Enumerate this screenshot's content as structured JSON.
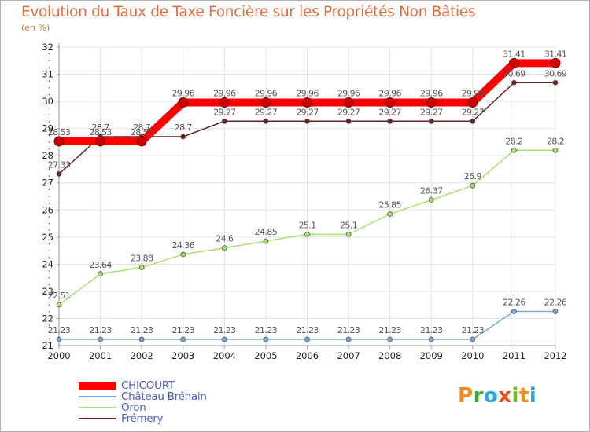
{
  "title": "Evolution du Taux de Taxe Foncière sur les Propriétés Non Bâties",
  "subtitle": "(en %)",
  "brand": {
    "letters": [
      "P",
      "r",
      "o",
      "x",
      "i",
      "t",
      "i"
    ],
    "colors": [
      "#f28c1e",
      "#3fa535",
      "#29a9e0",
      "#e94e1b",
      "#7ab929",
      "#f28c1e",
      "#29a9e0"
    ]
  },
  "chart_data": {
    "type": "line",
    "title": "Evolution du Taux de Taxe Foncière sur les Propriétés Non Bâties",
    "ylabel": "(en %)",
    "xlabel": "",
    "ylim": [
      21,
      32
    ],
    "yticks": [
      21,
      22,
      23,
      24,
      25,
      26,
      27,
      28,
      29,
      30,
      31,
      32
    ],
    "categories": [
      "2000",
      "2001",
      "2002",
      "2003",
      "2004",
      "2005",
      "2006",
      "2007",
      "2008",
      "2009",
      "2010",
      "2011",
      "2012"
    ],
    "series": [
      {
        "name": "Frémery",
        "color": "#6b2020",
        "values": [
          27.33,
          28.7,
          28.7,
          28.7,
          29.27,
          29.27,
          29.27,
          29.27,
          29.27,
          29.27,
          29.27,
          30.69,
          30.69
        ],
        "labels": [
          "27.33",
          "28.7",
          "28.7",
          "28.7",
          "29.27",
          "29.27",
          "29.27",
          "29.27",
          "29.27",
          "29.27",
          "29.27",
          "30.69",
          "30.69"
        ]
      },
      {
        "name": "Oron",
        "color": "#a8e070",
        "values": [
          22.51,
          23.64,
          23.88,
          24.36,
          24.6,
          24.85,
          25.1,
          25.1,
          25.85,
          26.37,
          26.9,
          28.2,
          28.2
        ],
        "labels": [
          "22.51",
          "23.64",
          "23.88",
          "24.36",
          "24.6",
          "24.85",
          "25.1",
          "25.1",
          "25.85",
          "26.37",
          "26.9",
          "28.2",
          "28.2"
        ]
      },
      {
        "name": "Château-Bréhain",
        "color": "#7aaad8",
        "values": [
          21.23,
          21.23,
          21.23,
          21.23,
          21.23,
          21.23,
          21.23,
          21.23,
          21.23,
          21.23,
          21.23,
          22.26,
          22.26
        ],
        "labels": [
          "21.23",
          "21.23",
          "21.23",
          "21.23",
          "21.23",
          "21.23",
          "21.23",
          "21.23",
          "21.23",
          "21.23",
          "21.23",
          "22.26",
          "22.26"
        ]
      },
      {
        "name": "CHICOURT",
        "color": "#ff0000",
        "values": [
          28.53,
          28.53,
          28.53,
          29.96,
          29.96,
          29.96,
          29.96,
          29.96,
          29.96,
          29.96,
          29.96,
          31.41,
          31.41
        ],
        "labels": [
          "28.53",
          "28.53",
          "28.53",
          "29.96",
          "29.96",
          "29.96",
          "29.96",
          "29.96",
          "29.96",
          "29.96",
          "29.96",
          "31.41",
          "31.41"
        ]
      }
    ],
    "legend": [
      "CHICOURT",
      "Château-Bréhain",
      "Oron",
      "Frémery"
    ],
    "legend_position": "bottom-left",
    "grid": true
  }
}
